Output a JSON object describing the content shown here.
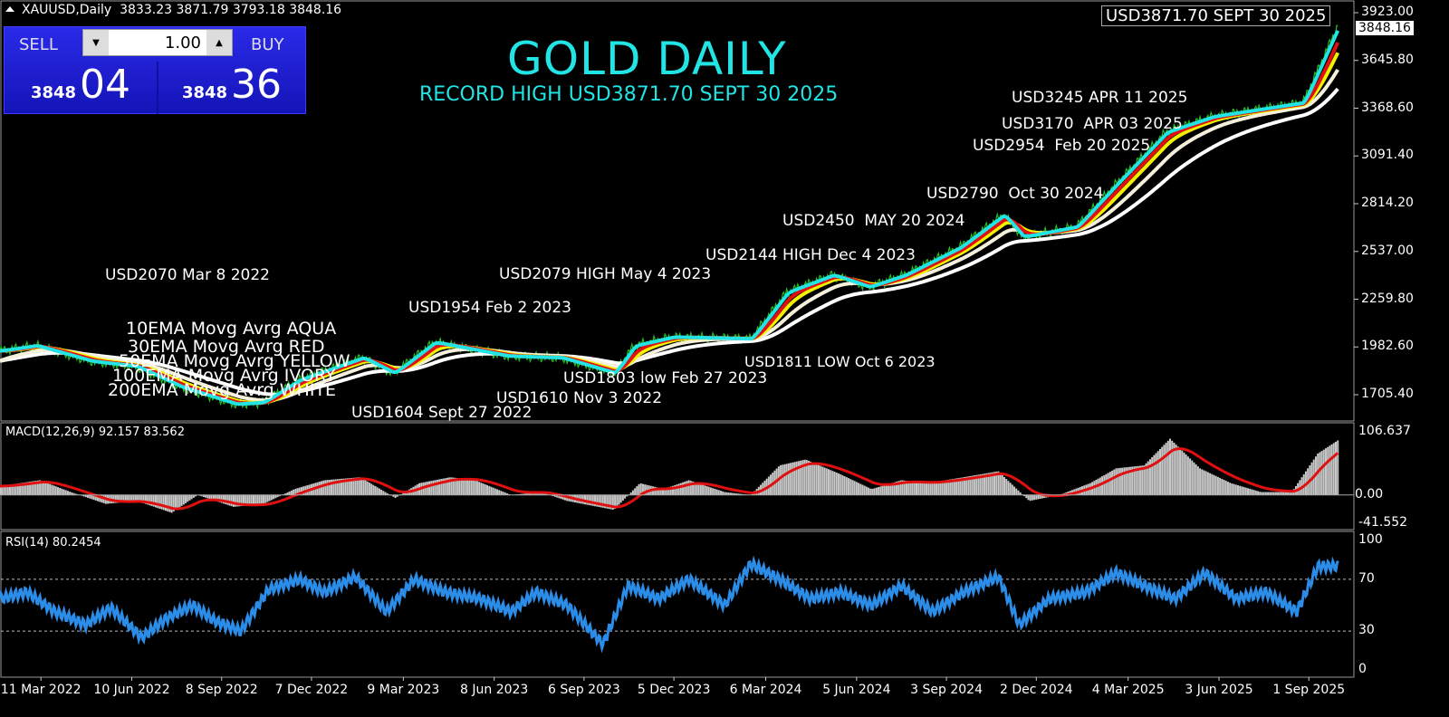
{
  "header": {
    "symbol": "XAUUSD,Daily",
    "open": "3833.23",
    "high": "3871.79",
    "low": "3793.18",
    "close": "3848.16"
  },
  "trade_panel": {
    "sell_label": "SELL",
    "buy_label": "BUY",
    "lot": "1.00",
    "sell_small": "3848",
    "sell_big": "04",
    "buy_small": "3848",
    "buy_big": "36"
  },
  "title": "GOLD DAILY",
  "subtitle": "RECORD HIGH USD3871.70  SEPT 30 2025",
  "record_box": "USD3871.70  SEPT 30 2025",
  "current_price_tag": "3848.16",
  "annotations": [
    "USD3245 APR 11 2025",
    "USD3170  APR 03 2025",
    "USD2954  Feb 20 2025",
    "USD2790  Oct 30 2024",
    "USD2450  MAY 20 2024",
    "USD2144 HIGH Dec 4 2023",
    "USD2079 HIGH May 4 2023",
    "USD2070 Mar 8 2022",
    "USD1954 Feb 2 2023",
    "USD1811 LOW Oct 6 2023",
    "USD1803 low Feb 27 2023",
    "USD1610 Nov 3 2022",
    "USD1604 Sept 27 2022"
  ],
  "ma_legend": [
    "10EMA Movg Avrg AQUA",
    "30EMA Movg Avrg RED",
    "50EMA Movg Avrg YELLOW",
    "100EMA Movg Avrg IVORY",
    "200EMA Movg Avrg WHITE"
  ],
  "macd_label": "MACD(12,26,9) 92.157 83.562",
  "rsi_label": "RSI(14) 80.2454",
  "chart_data": [
    {
      "type": "line",
      "panel": "price",
      "ylim": [
        1705.4,
        3923.0
      ],
      "y_ticks": [
        "3923.00",
        "3645.80",
        "3368.60",
        "3091.40",
        "2814.20",
        "2537.00",
        "2259.80",
        "1982.60",
        "1705.40"
      ],
      "x_ticks": [
        "11 Mar 2022",
        "10 Jun 2022",
        "8 Sep 2022",
        "7 Dec 2022",
        "9 Mar 2023",
        "8 Jun 2023",
        "6 Sep 2023",
        "5 Dec 2023",
        "6 Mar 2024",
        "5 Jun 2024",
        "3 Sep 2024",
        "2 Dec 2024",
        "4 Mar 2025",
        "3 Jun 2025",
        "1 Sep 2025"
      ],
      "x_tick_dates": [
        "2022-03-11",
        "2022-06-10",
        "2022-09-08",
        "2022-12-07",
        "2023-03-09",
        "2023-06-08",
        "2023-09-06",
        "2023-12-05",
        "2024-03-06",
        "2024-06-05",
        "2024-09-03",
        "2024-12-02",
        "2025-03-04",
        "2025-06-03",
        "2025-09-01"
      ],
      "dates": [
        "2022-01-29",
        "2022-03-06",
        "2022-04-30",
        "2022-06-14",
        "2022-07-29",
        "2022-09-22",
        "2022-10-19",
        "2022-11-24",
        "2023-01-27",
        "2023-02-27",
        "2023-04-09",
        "2023-06-21",
        "2023-08-14",
        "2023-10-06",
        "2023-10-26",
        "2023-12-04",
        "2024-02-20",
        "2024-03-27",
        "2024-05-12",
        "2024-06-17",
        "2024-07-23",
        "2024-09-16",
        "2024-10-30",
        "2024-11-18",
        "2025-01-11",
        "2025-02-20",
        "2025-04-11",
        "2025-05-28",
        "2025-08-26",
        "2025-09-30"
      ],
      "close": [
        1960,
        1990,
        1900,
        1870,
        1750,
        1650,
        1660,
        1790,
        1920,
        1830,
        2010,
        1930,
        1920,
        1830,
        1990,
        2040,
        2030,
        2300,
        2400,
        2330,
        2400,
        2560,
        2750,
        2620,
        2680,
        2930,
        3230,
        3320,
        3400,
        3848
      ],
      "series": [
        {
          "name": "10EMA Movg Avrg AQUA",
          "period": 10,
          "color": "#22e4e4"
        },
        {
          "name": "30EMA Movg Avrg RED",
          "period": 30,
          "color": "#e01010"
        },
        {
          "name": "50EMA Movg Avrg YELLOW",
          "period": 50,
          "color": "#f2f200"
        },
        {
          "name": "100EMA Movg Avrg IVORY",
          "period": 100,
          "color": "#f5f0dc"
        },
        {
          "name": "200EMA Movg Avrg WHITE",
          "period": 200,
          "color": "#ffffff"
        }
      ],
      "price_color": "#22c022"
    },
    {
      "type": "bar",
      "panel": "macd",
      "ylim": [
        -41.552,
        106.637
      ],
      "y_ticks": [
        "106.637",
        "0.00",
        "-41.552"
      ],
      "dates": [
        "2022-01-29",
        "2022-03-10",
        "2022-04-10",
        "2022-05-15",
        "2022-06-15",
        "2022-07-20",
        "2022-08-15",
        "2022-09-20",
        "2022-10-20",
        "2022-11-20",
        "2022-12-20",
        "2023-01-25",
        "2023-03-01",
        "2023-03-25",
        "2023-04-25",
        "2023-05-20",
        "2023-06-25",
        "2023-07-25",
        "2023-08-20",
        "2023-10-06",
        "2023-11-01",
        "2023-11-25",
        "2023-12-20",
        "2024-01-25",
        "2024-02-20",
        "2024-03-20",
        "2024-04-15",
        "2024-05-20",
        "2024-06-20",
        "2024-07-20",
        "2024-08-15",
        "2024-09-20",
        "2024-10-25",
        "2024-11-25",
        "2024-12-25",
        "2025-01-25",
        "2025-02-20",
        "2025-03-20",
        "2025-04-15",
        "2025-05-15",
        "2025-06-15",
        "2025-07-15",
        "2025-08-15",
        "2025-09-10",
        "2025-09-30"
      ],
      "values": [
        15,
        25,
        5,
        -15,
        -10,
        -30,
        0,
        -20,
        -15,
        10,
        25,
        30,
        -5,
        20,
        30,
        25,
        0,
        5,
        -10,
        -25,
        20,
        10,
        25,
        5,
        0,
        50,
        60,
        35,
        10,
        25,
        20,
        30,
        40,
        -10,
        0,
        20,
        45,
        50,
        95,
        45,
        20,
        5,
        5,
        70,
        92.157
      ],
      "signal_final": 83.562,
      "histogram_color": "#c8c8c8",
      "signal_color": "#e01010"
    },
    {
      "type": "line",
      "panel": "rsi",
      "ylim": [
        0,
        100
      ],
      "y_ticks": [
        "100",
        "70",
        "30",
        "0"
      ],
      "levels": [
        70,
        30
      ],
      "dates": [
        "2022-01-29",
        "2022-02-25",
        "2022-03-25",
        "2022-04-25",
        "2022-05-20",
        "2022-06-20",
        "2022-07-15",
        "2022-08-10",
        "2022-09-01",
        "2022-09-27",
        "2022-10-25",
        "2022-11-25",
        "2022-12-20",
        "2023-01-20",
        "2023-02-20",
        "2023-03-20",
        "2023-04-20",
        "2023-05-25",
        "2023-06-25",
        "2023-07-20",
        "2023-08-20",
        "2023-09-25",
        "2023-10-20",
        "2023-11-20",
        "2023-12-20",
        "2024-01-25",
        "2024-02-20",
        "2024-03-20",
        "2024-04-20",
        "2024-05-20",
        "2024-06-20",
        "2024-07-20",
        "2024-08-20",
        "2024-09-20",
        "2024-10-25",
        "2024-11-15",
        "2024-12-15",
        "2025-01-20",
        "2025-02-20",
        "2025-03-20",
        "2025-04-20",
        "2025-05-20",
        "2025-06-20",
        "2025-07-20",
        "2025-08-20",
        "2025-09-10",
        "2025-09-30"
      ],
      "values": [
        55,
        60,
        45,
        35,
        48,
        25,
        40,
        50,
        38,
        30,
        62,
        70,
        60,
        72,
        45,
        70,
        60,
        55,
        45,
        60,
        50,
        20,
        65,
        55,
        70,
        50,
        82,
        70,
        55,
        60,
        50,
        65,
        45,
        60,
        72,
        35,
        55,
        60,
        75,
        65,
        55,
        75,
        55,
        60,
        45,
        80,
        80.2454
      ],
      "color": "#2b8de8"
    }
  ]
}
